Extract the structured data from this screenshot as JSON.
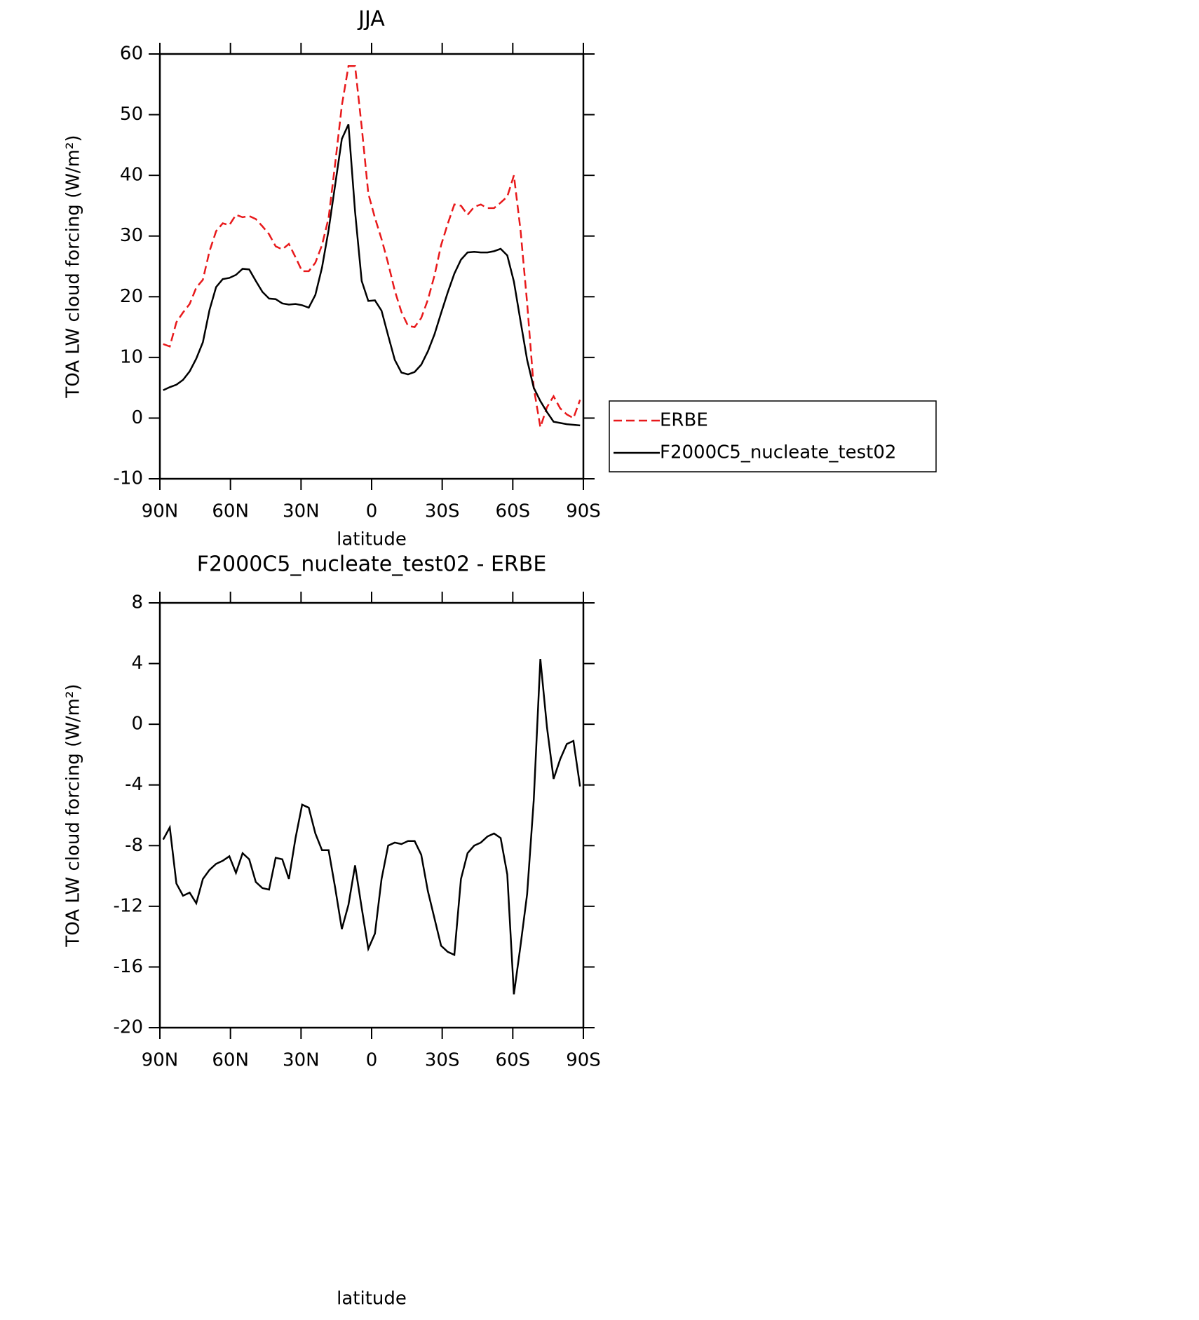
{
  "chart_data": [
    {
      "type": "line",
      "title": "JJA",
      "xlabel": "latitude",
      "ylabel": "TOA LW cloud forcing (W/m²)",
      "x": [
        88.59,
        85.78,
        82.97,
        80.16,
        77.34,
        74.53,
        71.72,
        68.91,
        66.09,
        63.28,
        60.47,
        57.66,
        54.84,
        52.03,
        49.22,
        46.41,
        43.59,
        40.78,
        37.97,
        35.16,
        32.34,
        29.53,
        26.72,
        23.91,
        21.09,
        18.28,
        15.47,
        12.66,
        9.84,
        7.03,
        4.22,
        1.41,
        -1.41,
        -4.22,
        -7.03,
        -9.84,
        -12.66,
        -15.47,
        -18.28,
        -21.09,
        -23.91,
        -26.72,
        -29.53,
        -32.34,
        -35.16,
        -37.97,
        -40.78,
        -43.59,
        -46.41,
        -49.22,
        -52.03,
        -54.84,
        -57.66,
        -60.47,
        -63.28,
        -66.09,
        -68.91,
        -71.72,
        -74.53,
        -77.34,
        -80.16,
        -82.97,
        -85.78,
        -88.59
      ],
      "xlim": [
        90,
        -90
      ],
      "xticks": [
        {
          "value": 90,
          "label": "90N"
        },
        {
          "value": 60,
          "label": "60N"
        },
        {
          "value": 30,
          "label": "30N"
        },
        0,
        {
          "value": -30,
          "label": "30S"
        },
        {
          "value": -60,
          "label": "60S"
        },
        {
          "value": -90,
          "label": "90S"
        }
      ],
      "ylim": [
        -10,
        60
      ],
      "yticks": [
        -10,
        0,
        10,
        20,
        30,
        40,
        50,
        60
      ],
      "legend": "right",
      "series": [
        {
          "name": "ERBE",
          "color": "#e8191b",
          "dash": "dashed",
          "values": [
            12.2,
            11.8,
            15.8,
            17.4,
            18.8,
            21.5,
            22.8,
            27.5,
            30.8,
            32.1,
            31.8,
            33.5,
            33.1,
            33.3,
            32.8,
            31.6,
            30.3,
            28.3,
            27.8,
            28.7,
            26.5,
            24.2,
            24.2,
            25.6,
            28.5,
            33,
            42,
            51.5,
            58,
            58,
            48,
            37,
            33,
            29.5,
            25.5,
            21,
            17.5,
            15.2,
            15,
            16.5,
            19.5,
            23.5,
            28.5,
            32,
            35.2,
            35,
            33.5,
            34.8,
            35.2,
            34.6,
            34.6,
            35.5,
            36.5,
            40,
            31,
            19,
            5,
            -1.5,
            1.8,
            3.6,
            1.6,
            0.6,
            0,
            3
          ]
        },
        {
          "name": "F2000C5_nucleate_test02",
          "color": "#000000",
          "dash": "solid",
          "values": [
            4.6,
            5.1,
            5.5,
            6.3,
            7.7,
            9.8,
            12.5,
            17.8,
            21.6,
            22.9,
            23.1,
            23.6,
            24.6,
            24.5,
            22.6,
            20.8,
            19.7,
            19.6,
            18.9,
            18.7,
            18.8,
            18.6,
            18.2,
            20.3,
            24.8,
            31,
            38.5,
            46,
            48.4,
            34,
            22.6,
            19.3,
            19.4,
            17.7,
            13.6,
            9.6,
            7.5,
            7.2,
            7.6,
            8.8,
            11,
            13.8,
            17.3,
            20.7,
            23.8,
            26.1,
            27.3,
            27.4,
            27.3,
            27.3,
            27.5,
            27.9,
            26.8,
            22.5,
            16,
            9.6,
            5.0,
            2.8,
            1.0,
            -0.6,
            -0.8,
            -1.0,
            -1.1,
            -1.2
          ]
        }
      ]
    },
    {
      "type": "line",
      "title": "F2000C5_nucleate_test02 - ERBE",
      "xlabel": "latitude",
      "ylabel": "TOA LW cloud forcing (W/m²)",
      "x": [
        88.59,
        85.78,
        82.97,
        80.16,
        77.34,
        74.53,
        71.72,
        68.91,
        66.09,
        63.28,
        60.47,
        57.66,
        54.84,
        52.03,
        49.22,
        46.41,
        43.59,
        40.78,
        37.97,
        35.16,
        32.34,
        29.53,
        26.72,
        23.91,
        21.09,
        18.28,
        15.47,
        12.66,
        9.84,
        7.03,
        4.22,
        1.41,
        -1.41,
        -4.22,
        -7.03,
        -9.84,
        -12.66,
        -15.47,
        -18.28,
        -21.09,
        -23.91,
        -26.72,
        -29.53,
        -32.34,
        -35.16,
        -37.97,
        -40.78,
        -43.59,
        -46.41,
        -49.22,
        -52.03,
        -54.84,
        -57.66,
        -60.47,
        -63.28,
        -66.09,
        -68.91,
        -71.72,
        -74.53,
        -77.34,
        -80.16,
        -82.97,
        -85.78,
        -88.59
      ],
      "xlim": [
        90,
        -90
      ],
      "xticks": [
        {
          "value": 90,
          "label": "90N"
        },
        {
          "value": 60,
          "label": "60N"
        },
        {
          "value": 30,
          "label": "30N"
        },
        0,
        {
          "value": -30,
          "label": "30S"
        },
        {
          "value": -60,
          "label": "60S"
        },
        {
          "value": -90,
          "label": "90S"
        }
      ],
      "ylim": [
        -20,
        8
      ],
      "yticks": [
        -20,
        -16,
        -12,
        -8,
        -4,
        0,
        4,
        8
      ],
      "series": [
        {
          "color": "#000000",
          "dash": "solid",
          "values": [
            -7.6,
            -6.8,
            -10.5,
            -11.3,
            -11.1,
            -11.8,
            -10.2,
            -9.6,
            -9.2,
            -9.0,
            -8.7,
            -9.8,
            -8.5,
            -8.9,
            -10.4,
            -10.8,
            -10.9,
            -8.8,
            -8.9,
            -10.2,
            -7.5,
            -5.3,
            -5.5,
            -7.2,
            -8.3,
            -8.3,
            -10.8,
            -13.5,
            -11.9,
            -9.3,
            -12.1,
            -14.8,
            -13.8,
            -10.2,
            -8.0,
            -7.8,
            -7.9,
            -7.7,
            -7.7,
            -8.6,
            -11,
            -12.8,
            -14.6,
            -15.0,
            -15.2,
            -10.2,
            -8.5,
            -8.0,
            -7.8,
            -7.4,
            -7.2,
            -7.5,
            -9.9,
            -17.8,
            -14.6,
            -11.2,
            -5,
            4.3,
            -0.2,
            -3.6,
            -2.3,
            -1.3,
            -1.1,
            -4.1
          ]
        }
      ]
    }
  ]
}
